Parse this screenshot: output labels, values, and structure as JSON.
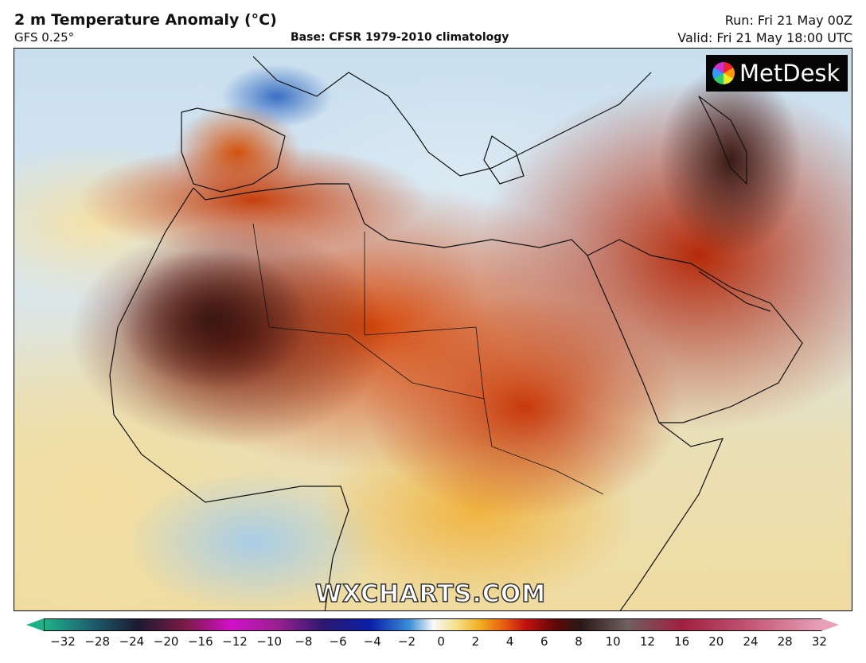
{
  "header": {
    "title": "2 m Temperature Anomaly (°C)",
    "model": "GFS 0.25°",
    "base": "Base: CFSR 1979-2010 climatology",
    "run": "Run: Fri 21 May 00Z",
    "valid": "Valid: Fri 21 May 18:00 UTC"
  },
  "logo": {
    "text": "MetDesk"
  },
  "watermark": "WXCHARTS.COM",
  "colorbar": {
    "ticks": [
      "−32",
      "−28",
      "−24",
      "−20",
      "−16",
      "−12",
      "−10",
      "−8",
      "−6",
      "−4",
      "−2",
      "0",
      "2",
      "4",
      "6",
      "8",
      "10",
      "12",
      "16",
      "20",
      "24",
      "28",
      "32"
    ],
    "colors": [
      "#1fb08a",
      "#1c1a30",
      "#d010c8",
      "#0a20a8",
      "#f8f8f8",
      "#f0b020",
      "#c01010",
      "#2a1818",
      "#a02040",
      "#e8a0b8"
    ]
  }
}
